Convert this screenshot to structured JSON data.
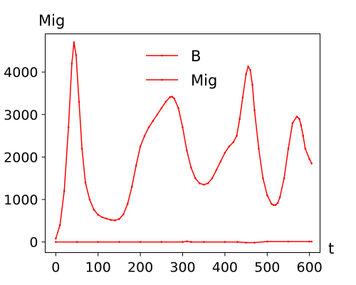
{
  "chart_data": {
    "type": "line",
    "title": "",
    "xlabel": "t",
    "ylabel": "Mig",
    "xlim": [
      -25,
      625
    ],
    "ylim": [
      -250,
      4900
    ],
    "xticks": [
      0,
      100,
      200,
      300,
      400,
      500,
      600
    ],
    "yticks": [
      0,
      1000,
      2000,
      3000,
      4000
    ],
    "grid": false,
    "legend_position": "upper center",
    "series": [
      {
        "name": "B",
        "color": "#ff0000",
        "marker": "dot",
        "x": [
          0,
          50,
          100,
          150,
          200,
          250,
          300,
          310,
          320,
          350,
          400,
          430,
          450,
          470,
          500,
          550,
          600,
          605
        ],
        "y": [
          0,
          0,
          0,
          0,
          0,
          0,
          0,
          15,
          0,
          0,
          0,
          0,
          -15,
          -15,
          10,
          10,
          10,
          10
        ]
      },
      {
        "name": "Mig",
        "color": "#ff0000",
        "marker": "dot",
        "x": [
          0,
          10,
          20,
          30,
          38,
          43,
          48,
          55,
          62,
          70,
          80,
          90,
          100,
          110,
          120,
          130,
          140,
          150,
          160,
          170,
          180,
          190,
          200,
          210,
          220,
          230,
          240,
          250,
          260,
          270,
          275,
          280,
          290,
          300,
          310,
          320,
          330,
          340,
          350,
          360,
          370,
          380,
          390,
          400,
          410,
          420,
          428,
          435,
          442,
          450,
          455,
          460,
          465,
          470,
          480,
          490,
          500,
          510,
          515,
          520,
          525,
          530,
          540,
          550,
          560,
          570,
          576,
          580,
          585,
          590,
          600,
          605
        ],
        "y": [
          80,
          400,
          1200,
          2700,
          4200,
          4700,
          4400,
          3300,
          2200,
          1400,
          1000,
          760,
          640,
          580,
          550,
          520,
          510,
          540,
          650,
          900,
          1300,
          1800,
          2250,
          2500,
          2700,
          2850,
          3000,
          3150,
          3300,
          3410,
          3420,
          3380,
          3150,
          2700,
          2150,
          1750,
          1500,
          1380,
          1350,
          1380,
          1500,
          1700,
          1900,
          2100,
          2250,
          2350,
          2500,
          2900,
          3400,
          3950,
          4130,
          4050,
          3700,
          3100,
          2200,
          1500,
          1100,
          900,
          870,
          870,
          920,
          1050,
          1500,
          2200,
          2800,
          2950,
          2900,
          2750,
          2500,
          2200,
          1950,
          1850
        ]
      }
    ]
  }
}
